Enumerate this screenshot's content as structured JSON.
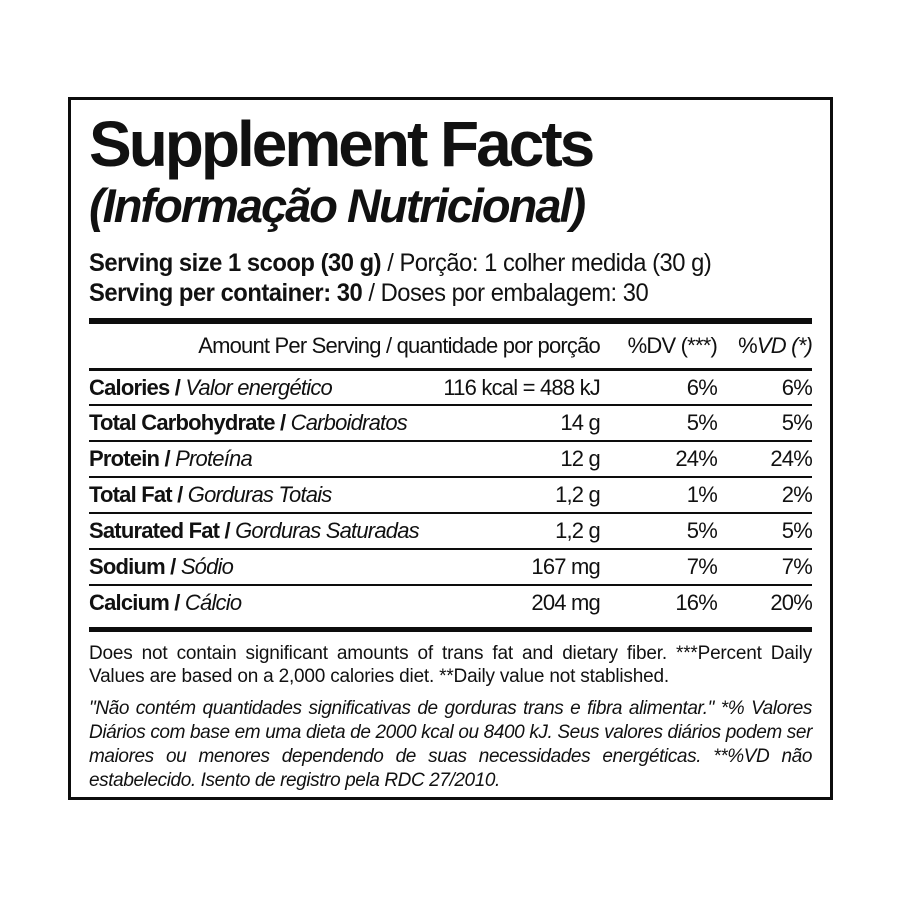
{
  "title": "Supplement Facts",
  "subtitle": "(Informação Nutricional)",
  "separator": " / ",
  "serving": {
    "size_en": "Serving size 1 scoop (30 g)",
    "size_pt": "Porção: 1 colher medida (30 g)",
    "container_en": "Serving per container: 30",
    "container_pt": "Doses por embalagem: 30"
  },
  "table": {
    "header": {
      "amount": "Amount Per Serving / quantidade por porção",
      "dv": "%DV (***)",
      "vd_prefix": "%",
      "vd_rest": "VD (*)"
    },
    "rows": [
      {
        "name_en": "Calories",
        "name_pt": "Valor energético",
        "amount": "116 kcal = 488 kJ",
        "dv": "6%",
        "vd": "6%"
      },
      {
        "name_en": "Total Carbohydrate",
        "name_pt": "Carboidratos",
        "amount": "14 g",
        "dv": "5%",
        "vd": "5%"
      },
      {
        "name_en": "Protein",
        "name_pt": "Proteína",
        "amount": "12 g",
        "dv": "24%",
        "vd": "24%"
      },
      {
        "name_en": "Total Fat",
        "name_pt": "Gorduras Totais",
        "amount": "1,2 g",
        "dv": "1%",
        "vd": "2%"
      },
      {
        "name_en": "Saturated Fat",
        "name_pt": "Gorduras Saturadas",
        "amount": "1,2 g",
        "dv": "5%",
        "vd": "5%"
      },
      {
        "name_en": "Sodium",
        "name_pt": "Sódio",
        "amount": "167 mg",
        "dv": "7%",
        "vd": "7%"
      },
      {
        "name_en": "Calcium",
        "name_pt": "Cálcio",
        "amount": "204 mg",
        "dv": "16%",
        "vd": "20%"
      }
    ]
  },
  "footnotes": {
    "en": "Does not contain significant amounts of trans fat and dietary fiber. ***Percent Daily Values are based on a 2,000 calories diet. **Daily value not stablished.",
    "pt": "\"Não contém quantidades significativas de gorduras trans e fibra alimentar.\" *% Valores Diários com base em uma dieta de 2000 kcal ou 8400 kJ. Seus valores diários podem ser maiores ou menores dependendo de suas necessidades energéticas. **%VD não estabelecido. Isento de registro pela RDC 27/2010."
  },
  "colors": {
    "text": "#111111",
    "border": "#0d0d0d",
    "background": "#ffffff"
  }
}
